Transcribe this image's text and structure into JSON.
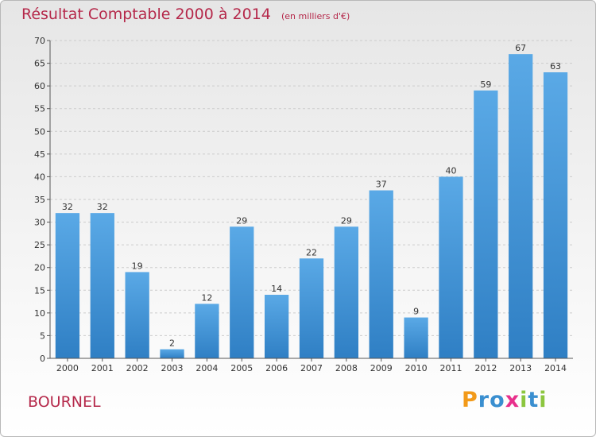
{
  "chart_data": {
    "type": "bar",
    "title": "Résultat Comptable 2000 à 2014",
    "subtitle": "(en milliers d'€)",
    "categories": [
      "2000",
      "2001",
      "2002",
      "2003",
      "2004",
      "2005",
      "2006",
      "2007",
      "2008",
      "2009",
      "2010",
      "2011",
      "2012",
      "2013",
      "2014"
    ],
    "values": [
      32,
      32,
      19,
      2,
      12,
      29,
      14,
      22,
      29,
      37,
      9,
      40,
      59,
      67,
      63
    ],
    "ylim": [
      0,
      70
    ],
    "yticks": [
      0,
      5,
      10,
      15,
      20,
      25,
      30,
      35,
      40,
      45,
      50,
      55,
      60,
      65,
      70
    ],
    "grid": true,
    "bar_color_top": "#5aa9e6",
    "bar_color_bottom": "#2f7fc4"
  },
  "footer": {
    "commune": "BOURNEL",
    "logo_letters": [
      "P",
      "r",
      "o",
      "x",
      "i",
      "t",
      "i"
    ],
    "logo_colors": [
      "#f29a1a",
      "#3a8fd0",
      "#3a8fd0",
      "#e8308c",
      "#8cc63f",
      "#3a8fd0",
      "#8cc63f"
    ]
  }
}
